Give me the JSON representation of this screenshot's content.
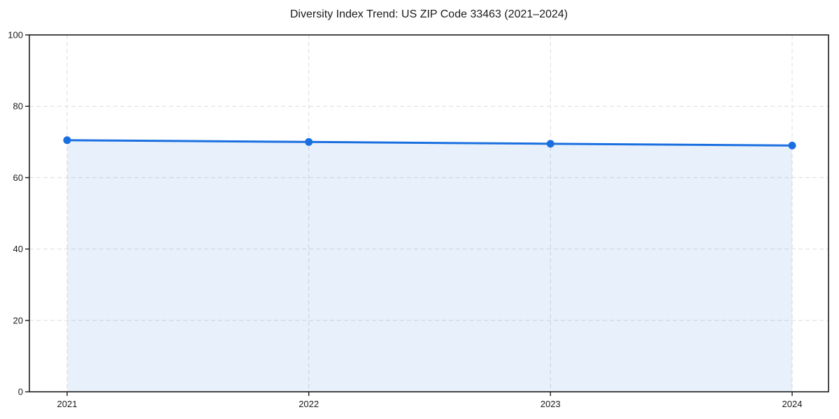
{
  "chart_data": {
    "type": "area",
    "title": "Diversity Index Trend: US ZIP Code 33463 (2021–2024)",
    "categories": [
      "2021",
      "2022",
      "2023",
      "2024"
    ],
    "values": [
      70.5,
      70.0,
      69.5,
      69.0
    ],
    "xlabel": "",
    "ylabel": "",
    "ylim": [
      0,
      100
    ],
    "yticks": [
      0,
      20,
      40,
      60,
      80,
      100
    ],
    "grid": true,
    "grid_style": "dashed",
    "legend": false,
    "colors": {
      "line": "#1a6fe0",
      "marker": "#1a6fe0",
      "fill": "rgba(26, 111, 224, 0.10)",
      "grid": "#dcdcdc",
      "axis": "#1a1a1a",
      "text": "#1a1a1a",
      "background": "#ffffff"
    }
  }
}
